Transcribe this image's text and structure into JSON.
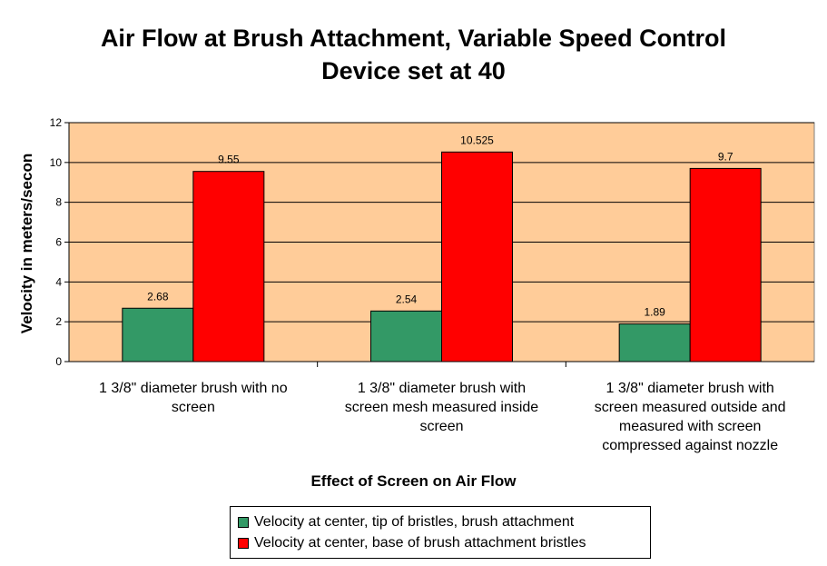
{
  "chart_data": {
    "type": "bar",
    "title_lines": [
      "Air Flow at Brush Attachment, Variable Speed Control",
      "Device set at 40"
    ],
    "xlabel": "Effect of Screen on Air Flow",
    "ylabel": "Velocity in meters/secon",
    "ylim": [
      0,
      12
    ],
    "yticks": [
      0,
      2,
      4,
      6,
      8,
      10,
      12
    ],
    "grid": true,
    "legend_position": "bottom",
    "plot_background": "#FFCC99",
    "categories": [
      "1 3/8\" diameter brush with no screen",
      "1 3/8\" diameter brush with screen mesh measured inside screen",
      "1 3/8\" diameter brush with screen measured outside and measured with screen compressed against nozzle"
    ],
    "category_lines": [
      [
        "1 3/8\" diameter brush with no",
        "screen"
      ],
      [
        "1 3/8\" diameter brush with",
        "screen mesh measured inside",
        "screen"
      ],
      [
        "1 3/8\" diameter brush with",
        "screen measured outside and",
        "measured with screen",
        "compressed against nozzle"
      ]
    ],
    "series": [
      {
        "name": "Velocity at center, tip of bristles, brush attachment",
        "color": "#339966",
        "values": [
          2.68,
          2.54,
          1.89
        ],
        "labels": [
          "2.68",
          "2.54",
          "1.89"
        ]
      },
      {
        "name": "Velocity at center, base of brush attachment bristles",
        "color": "#FF0000",
        "values": [
          9.55,
          10.525,
          9.7
        ],
        "labels": [
          "9.55",
          "10.525",
          "9.7"
        ]
      }
    ]
  }
}
